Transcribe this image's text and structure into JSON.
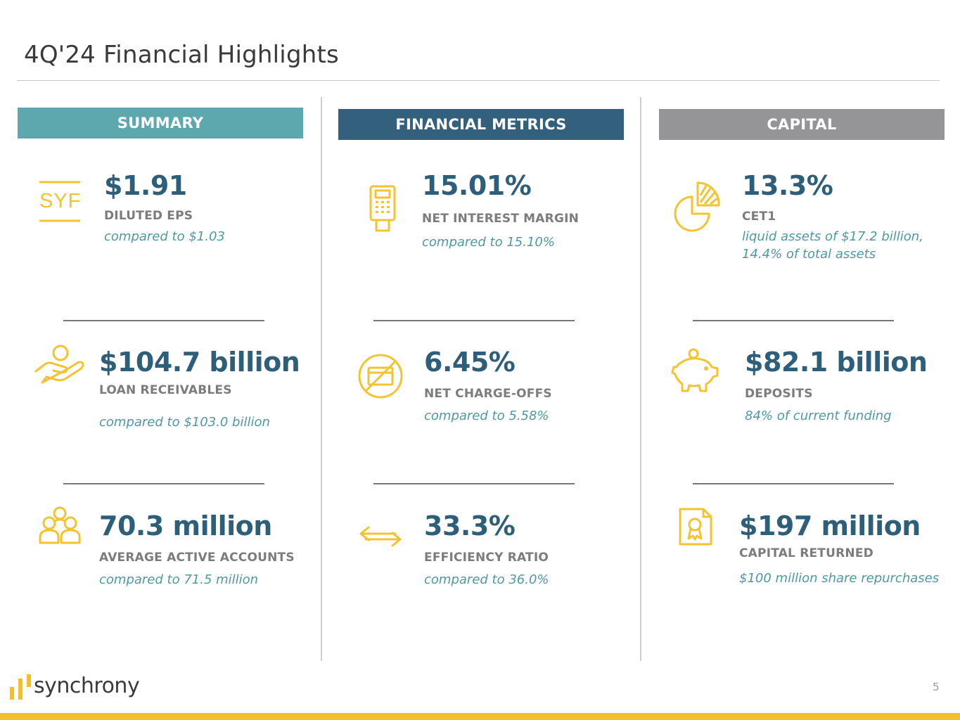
{
  "page": {
    "title": "4Q'24 Financial Highlights",
    "page_number": "5",
    "brand": "synchrony"
  },
  "colors": {
    "summary_header": "#5ca8ae",
    "metrics_header": "#33607c",
    "capital_header": "#959597",
    "value": "#2e5f7a",
    "note": "#4e99a2",
    "icon_yellow": "#f3c42f",
    "footer_bar": "#f3bf2c"
  },
  "sections": {
    "summary": {
      "header": "SUMMARY",
      "items": [
        {
          "icon": "syf-logo-icon",
          "icon_text": "SYF",
          "value": "$1.91",
          "label": "DILUTED EPS",
          "note": "compared to $1.03"
        },
        {
          "icon": "hand-holding-person-icon",
          "value": "$104.7 billion",
          "label": "LOAN RECEIVABLES",
          "note": "compared to $103.0 billion"
        },
        {
          "icon": "group-of-people-icon",
          "value": "70.3 million",
          "label": "AVERAGE ACTIVE ACCOUNTS",
          "note": "compared to 71.5 million"
        }
      ]
    },
    "financial_metrics": {
      "header": "FINANCIAL METRICS",
      "items": [
        {
          "icon": "card-terminal-icon",
          "value": "15.01%",
          "label": "NET INTEREST MARGIN",
          "note": "compared to 15.10%"
        },
        {
          "icon": "no-credit-card-icon",
          "value": "6.45%",
          "label": "NET CHARGE-OFFS",
          "note": "compared to 5.58%"
        },
        {
          "icon": "exchange-arrows-icon",
          "value": "33.3%",
          "label": "EFFICIENCY RATIO",
          "note": "compared to 36.0%"
        }
      ]
    },
    "capital": {
      "header": "CAPITAL",
      "items": [
        {
          "icon": "pie-chart-icon",
          "value": "13.3%",
          "label": "CET1",
          "note_line1": "liquid assets of $17.2 billion,",
          "note_line2": "14.4% of total assets"
        },
        {
          "icon": "piggy-bank-icon",
          "value": "$82.1 billion",
          "label": "DEPOSITS",
          "note": "84% of current funding"
        },
        {
          "icon": "certificate-icon",
          "value": "$197 million",
          "label": "CAPITAL RETURNED",
          "note": "$100 million share repurchases"
        }
      ]
    }
  }
}
